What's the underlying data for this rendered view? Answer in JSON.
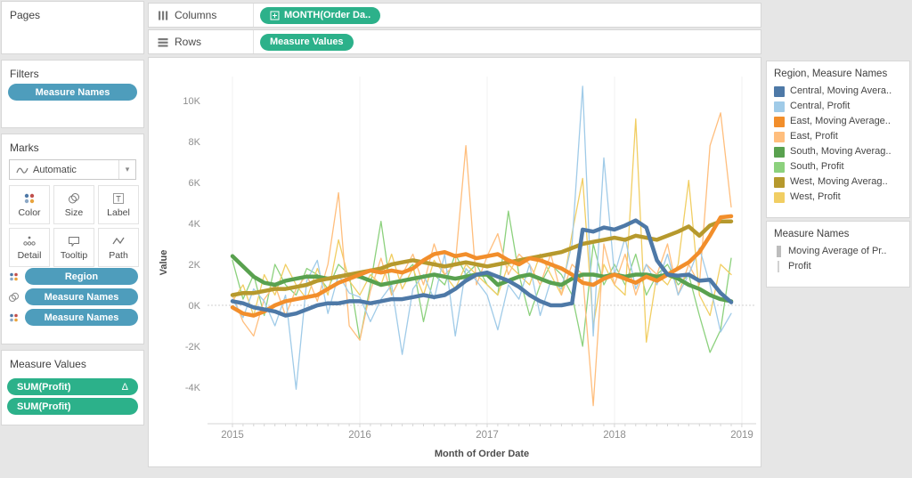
{
  "pages_card": {
    "title": "Pages"
  },
  "filters_card": {
    "title": "Filters",
    "pills": [
      {
        "label": "Measure Names",
        "color": "#4e9dbc"
      }
    ]
  },
  "marks_card": {
    "title": "Marks",
    "mark_type_selector": {
      "value": "Automatic",
      "caret": "▾"
    },
    "buttons": [
      {
        "label": "Color"
      },
      {
        "label": "Size"
      },
      {
        "label": "Label"
      },
      {
        "label": "Detail"
      },
      {
        "label": "Tooltip"
      },
      {
        "label": "Path"
      }
    ],
    "pills": [
      {
        "icon": "color-icon",
        "label": "Region",
        "color": "#4e9dbc"
      },
      {
        "icon": "size-icon",
        "label": "Measure Names",
        "color": "#4e9dbc"
      },
      {
        "icon": "color-icon",
        "label": "Measure Names",
        "color": "#4e9dbc"
      }
    ]
  },
  "measure_values_card": {
    "title": "Measure Values",
    "pills": [
      {
        "label": "SUM(Profit)",
        "badge": "Δ",
        "color": "#2cb18a"
      },
      {
        "label": "SUM(Profit)",
        "badge": "",
        "color": "#2cb18a"
      }
    ]
  },
  "shelves": {
    "columns": {
      "label": "Columns",
      "pills": [
        {
          "label": "MONTH(Order Da..",
          "icon": "plus-box-icon",
          "color": "#2cb18a"
        }
      ]
    },
    "rows": {
      "label": "Rows",
      "pills": [
        {
          "label": "Measure Values",
          "icon": "",
          "color": "#2cb18a"
        }
      ]
    }
  },
  "legends": {
    "region_measure": {
      "title": "Region, Measure Names",
      "items": [
        {
          "label": "Central, Moving Avera..",
          "color": "#4e79a7"
        },
        {
          "label": "Central, Profit",
          "color": "#a0cbe8"
        },
        {
          "label": "East, Moving Average..",
          "color": "#f28e2b"
        },
        {
          "label": "East, Profit",
          "color": "#ffbe7d"
        },
        {
          "label": "South, Moving Averag..",
          "color": "#59a14f"
        },
        {
          "label": "South, Profit",
          "color": "#8cd17d"
        },
        {
          "label": "West, Moving Averag..",
          "color": "#b6992d"
        },
        {
          "label": "West, Profit",
          "color": "#f1ce63"
        }
      ]
    },
    "measure_names": {
      "title": "Measure Names",
      "items": [
        {
          "label": "Moving Average of Pr..",
          "style": "thick"
        },
        {
          "label": "Profit",
          "style": "thin"
        }
      ]
    }
  },
  "chart_data": {
    "type": "line",
    "title": "",
    "xlabel": "Month of Order Date",
    "ylabel": "Value",
    "x_interval": "month",
    "x_start": "2015-01",
    "x_end": "2018-12",
    "n_points": 48,
    "value_units": "thousands (K)",
    "ylim_k": [
      -5.5,
      11.2
    ],
    "yticks": [
      "10K",
      "8K",
      "6K",
      "4K",
      "2K",
      "0K",
      "-2K",
      "-4K"
    ],
    "ytick_values_k": [
      10,
      8,
      6,
      4,
      2,
      0,
      -2,
      -4
    ],
    "xticks": [
      "2015",
      "2016",
      "2017",
      "2018",
      "2019"
    ],
    "grid": {
      "zero_line": true,
      "vertical_year_lines": true,
      "legend_position": "right"
    },
    "series": [
      {
        "name": "South, Profit",
        "region": "South",
        "measure": "Profit",
        "color": "#8cd17d",
        "line": "thin",
        "draw_order": 1,
        "values_k": [
          2.2,
          0.3,
          1.5,
          -0.5,
          2.0,
          1.0,
          0.5,
          1.8,
          1.5,
          0.8,
          2.0,
          1.5,
          -1.7,
          1.0,
          4.1,
          0.5,
          1.5,
          2.0,
          -0.8,
          1.5,
          1.0,
          2.5,
          1.5,
          2.0,
          1.0,
          0.5,
          4.6,
          1.5,
          -0.5,
          1.0,
          2.0,
          1.5,
          0.5,
          -2.0,
          3.0,
          1.0,
          2.0,
          1.0,
          2.5,
          0.5,
          1.5,
          2.0,
          1.0,
          1.5,
          -0.5,
          -2.3,
          -1.2,
          2.3
        ]
      },
      {
        "name": "West, Profit",
        "region": "West",
        "measure": "Profit",
        "color": "#f1ce63",
        "line": "thin",
        "draw_order": 2,
        "values_k": [
          0.2,
          1.0,
          -0.5,
          1.5,
          0.5,
          2.0,
          1.0,
          0.3,
          1.8,
          0.5,
          3.2,
          1.2,
          0.5,
          1.5,
          1.0,
          2.5,
          0.8,
          1.8,
          0.5,
          2.2,
          1.5,
          0.8,
          2.0,
          1.5,
          1.0,
          0.5,
          2.0,
          1.5,
          1.0,
          2.5,
          1.5,
          0.5,
          3.5,
          6.2,
          -1.0,
          2.0,
          1.0,
          0.5,
          9.1,
          -1.8,
          1.5,
          1.0,
          2.0,
          6.1,
          0.5,
          -0.5,
          2.0,
          1.5
        ]
      },
      {
        "name": "East, Profit",
        "region": "East",
        "measure": "Profit",
        "color": "#ffbe7d",
        "line": "thin",
        "draw_order": 3,
        "values_k": [
          0.5,
          -0.8,
          -1.5,
          0.3,
          1.0,
          -0.5,
          0.8,
          1.5,
          0.2,
          2.0,
          5.5,
          -1.0,
          -1.7,
          0.7,
          2.3,
          0.5,
          1.5,
          2.5,
          1.0,
          3.0,
          1.5,
          2.0,
          7.8,
          1.0,
          2.4,
          3.5,
          1.5,
          2.5,
          2.0,
          1.0,
          2.5,
          0.5,
          2.0,
          1.5,
          -4.9,
          3.0,
          1.0,
          2.5,
          0.5,
          2.0,
          1.5,
          3.0,
          0.5,
          2.0,
          1.0,
          7.8,
          9.4,
          4.8
        ]
      },
      {
        "name": "Central, Profit",
        "region": "Central",
        "measure": "Profit",
        "color": "#a0cbe8",
        "line": "thin",
        "draw_order": 4,
        "values_k": [
          0.3,
          -0.6,
          0.8,
          0.2,
          -1.0,
          0.5,
          -4.1,
          1.2,
          2.2,
          -0.4,
          1.5,
          0.6,
          0.4,
          -0.8,
          0.3,
          1.0,
          -2.4,
          0.8,
          1.5,
          0.3,
          2.5,
          -1.5,
          1.8,
          1.2,
          0.5,
          -1.2,
          1.0,
          0.3,
          2.0,
          -0.5,
          1.2,
          0.8,
          3.0,
          10.7,
          -1.5,
          7.2,
          1.5,
          3.3,
          0.8,
          2.0,
          1.0,
          2.5,
          0.5,
          1.5,
          2.8,
          1.0,
          -1.3,
          -0.4
        ]
      },
      {
        "name": "South, Moving Average of Profit",
        "region": "South",
        "measure": "Moving Average of Profit",
        "color": "#59a14f",
        "line": "thick",
        "draw_order": 5,
        "values_k": [
          2.4,
          1.9,
          1.4,
          1.1,
          1.0,
          1.2,
          1.3,
          1.4,
          1.4,
          1.3,
          1.4,
          1.5,
          1.4,
          1.2,
          1.0,
          1.1,
          1.2,
          1.3,
          1.4,
          1.5,
          1.4,
          1.3,
          1.4,
          1.5,
          1.5,
          1.0,
          1.2,
          1.4,
          1.5,
          1.3,
          1.1,
          1.0,
          1.3,
          1.5,
          1.5,
          1.4,
          1.5,
          1.4,
          1.5,
          1.5,
          1.4,
          1.5,
          1.3,
          1.0,
          0.8,
          0.5,
          0.3,
          0.2
        ]
      },
      {
        "name": "West, Moving Average of Profit",
        "region": "West",
        "measure": "Moving Average of Profit",
        "color": "#b6992d",
        "line": "thick",
        "draw_order": 6,
        "values_k": [
          0.5,
          0.6,
          0.6,
          0.7,
          0.8,
          0.8,
          0.9,
          1.0,
          1.2,
          1.3,
          1.4,
          1.5,
          1.6,
          1.7,
          1.8,
          2.0,
          2.1,
          2.2,
          2.1,
          2.0,
          1.9,
          2.0,
          2.1,
          2.0,
          1.9,
          2.0,
          2.1,
          2.2,
          2.3,
          2.4,
          2.5,
          2.6,
          2.8,
          3.0,
          3.1,
          3.2,
          3.3,
          3.2,
          3.4,
          3.3,
          3.2,
          3.4,
          3.6,
          3.85,
          3.4,
          3.9,
          4.1,
          4.1
        ]
      },
      {
        "name": "East, Moving Average of Profit",
        "region": "East",
        "measure": "Moving Average of Profit",
        "color": "#f28e2b",
        "line": "thick",
        "draw_order": 7,
        "values_k": [
          -0.1,
          -0.4,
          -0.5,
          -0.3,
          0.0,
          0.2,
          0.3,
          0.4,
          0.5,
          0.8,
          1.1,
          1.3,
          1.5,
          1.7,
          1.6,
          1.7,
          1.6,
          1.8,
          2.2,
          2.5,
          2.6,
          2.4,
          2.5,
          2.3,
          2.4,
          2.5,
          2.2,
          2.0,
          2.3,
          2.2,
          2.0,
          1.8,
          1.5,
          1.1,
          1.0,
          1.3,
          1.5,
          1.3,
          1.1,
          1.4,
          1.2,
          1.5,
          1.8,
          2.1,
          2.6,
          3.4,
          4.3,
          4.35
        ]
      },
      {
        "name": "Central, Moving Average of Profit",
        "region": "Central",
        "measure": "Moving Average of Profit",
        "color": "#4e79a7",
        "line": "thick",
        "draw_order": 8,
        "values_k": [
          0.2,
          0.1,
          -0.1,
          -0.2,
          -0.3,
          -0.5,
          -0.4,
          -0.2,
          0.0,
          0.1,
          0.1,
          0.2,
          0.2,
          0.1,
          0.2,
          0.3,
          0.3,
          0.4,
          0.5,
          0.4,
          0.5,
          0.8,
          1.2,
          1.5,
          1.6,
          1.4,
          1.2,
          0.9,
          0.5,
          0.2,
          0.0,
          0.0,
          0.1,
          3.7,
          3.6,
          3.8,
          3.7,
          3.9,
          4.15,
          3.8,
          2.2,
          1.5,
          1.45,
          1.5,
          1.2,
          1.25,
          0.6,
          0.15
        ]
      }
    ]
  }
}
